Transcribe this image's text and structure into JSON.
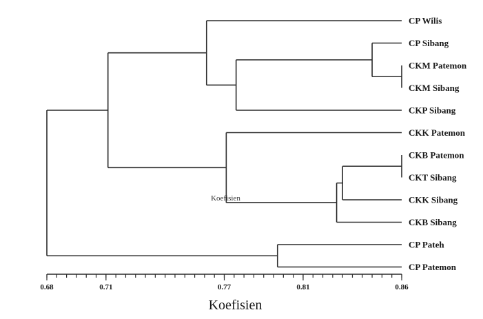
{
  "chart_data": {
    "type": "dendrogram",
    "xlabel": "Koefisien",
    "xlim": [
      0.68,
      0.86
    ],
    "ticks": [
      0.68,
      0.71,
      0.77,
      0.81,
      0.86
    ],
    "minor_tick_step": 0.005,
    "leaves": [
      "CP Wilis",
      "CP Sibang",
      "CKM Patemon",
      "CKM Sibang",
      "CKP Sibang",
      "CKK Patemon",
      "CKB Patemon",
      "CKT Sibang",
      "CKK Sibang",
      "CKB Sibang",
      "CP Pateh",
      "CP Patemon"
    ],
    "merges": [
      {
        "id": "m1",
        "children": [
          "CKM Patemon",
          "CKM Sibang"
        ],
        "height": 0.86
      },
      {
        "id": "m2",
        "children": [
          "CKB Patemon",
          "CKT Sibang"
        ],
        "height": 0.86
      },
      {
        "id": "m3",
        "children": [
          "CP Sibang",
          "m1"
        ],
        "height": 0.845
      },
      {
        "id": "m4",
        "children": [
          "m2",
          "CKK Sibang"
        ],
        "height": 0.83
      },
      {
        "id": "m5",
        "children": [
          "m4",
          "CKB Sibang"
        ],
        "height": 0.827
      },
      {
        "id": "m6",
        "children": [
          "CP Pateh",
          "CP Patemon"
        ],
        "height": 0.797
      },
      {
        "id": "m7",
        "children": [
          "m3",
          "CKP Sibang"
        ],
        "height": 0.776
      },
      {
        "id": "m8",
        "children": [
          "CKK Patemon",
          "m5"
        ],
        "height": 0.771
      },
      {
        "id": "m9",
        "children": [
          "CP Wilis",
          "m7"
        ],
        "height": 0.761
      },
      {
        "id": "m10",
        "children": [
          "m9",
          "m8"
        ],
        "height": 0.711
      },
      {
        "id": "m11",
        "children": [
          "m10",
          "m6"
        ],
        "height": 0.68
      }
    ],
    "annotation": {
      "text": "Koefisien",
      "x": 0.77
    }
  }
}
